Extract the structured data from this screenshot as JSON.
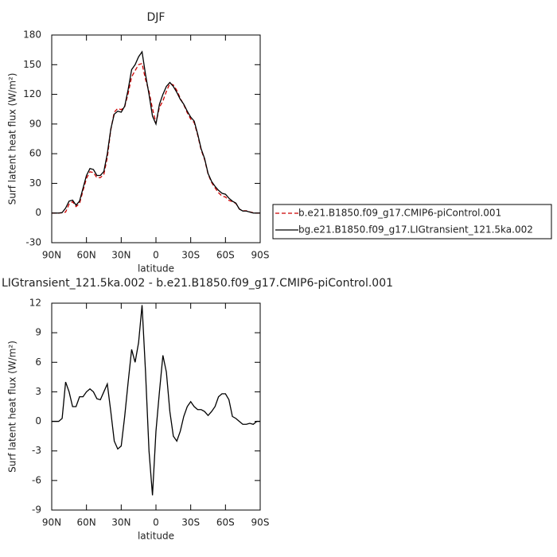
{
  "chart_data": [
    {
      "type": "line",
      "title": "DJF",
      "xlabel": "latitude",
      "ylabel": "Surf latent heat flux (W/m²)",
      "x": [
        90,
        87,
        84,
        81,
        78,
        75,
        72,
        69,
        66,
        63,
        60,
        57,
        54,
        51,
        48,
        45,
        42,
        39,
        36,
        33,
        30,
        27,
        24,
        21,
        18,
        15,
        12,
        9,
        6,
        3,
        0,
        -3,
        -6,
        -9,
        -12,
        -15,
        -18,
        -21,
        -24,
        -27,
        -30,
        -33,
        -36,
        -39,
        -42,
        -45,
        -48,
        -51,
        -54,
        -57,
        -60,
        -63,
        -66,
        -69,
        -72,
        -75,
        -78,
        -81,
        -84,
        -87,
        -90
      ],
      "xlim": [
        90,
        -90
      ],
      "xticks": [
        {
          "value": 90,
          "label": "90N"
        },
        {
          "value": 60,
          "label": "60N"
        },
        {
          "value": 30,
          "label": "30N"
        },
        0,
        {
          "value": -30,
          "label": "30S"
        },
        {
          "value": -60,
          "label": "60S"
        },
        {
          "value": -90,
          "label": "90S"
        }
      ],
      "ylim": [
        -30,
        180
      ],
      "yticks": [
        -30,
        0,
        30,
        60,
        90,
        120,
        150,
        180
      ],
      "legend": "right",
      "series": [
        {
          "name": "b.e21.B1850.f09_g17.CMIP6-piControl.001",
          "color": "#cc0000",
          "line_style": "dashed",
          "values": [
            0,
            0,
            0,
            0.2,
            1,
            9,
            11.5,
            6.5,
            9.5,
            22.5,
            35,
            41.7,
            41,
            35.7,
            35.8,
            39,
            56.2,
            84,
            102,
            105.8,
            104.5,
            107.5,
            121,
            137.7,
            144,
            150,
            151.2,
            135,
            123,
            105.5,
            91,
            107,
            113.3,
            123,
            131,
            129.5,
            124,
            116,
            109.5,
            101.5,
            95,
            91.5,
            78.8,
            63.8,
            54,
            39.4,
            31,
            25.5,
            20.5,
            17.2,
            16.2,
            12.8,
            11.5,
            9.7,
            4,
            2.3,
            2.3,
            1.2,
            0.3,
            0,
            0
          ]
        },
        {
          "name": "bg.e21.B1850.f09_g17.LIGtransient_121.5ka.002",
          "color": "#000000",
          "line_style": "solid",
          "values": [
            0,
            0,
            0,
            0.5,
            5,
            12,
            13,
            8,
            12,
            25,
            38,
            45,
            44,
            38,
            38,
            42,
            60,
            85,
            100,
            103,
            102,
            108,
            125,
            145,
            150,
            158,
            163,
            140,
            120,
            98,
            90,
            110,
            120,
            128,
            132,
            128,
            122,
            115,
            110,
            103,
            97,
            93,
            80,
            65,
            55,
            40,
            32,
            27,
            23,
            20,
            19,
            15,
            12,
            10,
            4,
            2,
            2,
            1,
            0,
            0,
            0
          ]
        }
      ]
    },
    {
      "type": "line",
      "title": "LIGtransient_121.5ka.002 - b.e21.B1850.f09_g17.CMIP6-piControl.001",
      "xlabel": "latitude",
      "ylabel": "Surf latent heat flux (W/m²)",
      "x": [
        90,
        87,
        84,
        81,
        78,
        75,
        72,
        69,
        66,
        63,
        60,
        57,
        54,
        51,
        48,
        45,
        42,
        39,
        36,
        33,
        30,
        27,
        24,
        21,
        18,
        15,
        12,
        9,
        6,
        3,
        0,
        -3,
        -6,
        -9,
        -12,
        -15,
        -18,
        -21,
        -24,
        -27,
        -30,
        -33,
        -36,
        -39,
        -42,
        -45,
        -48,
        -51,
        -54,
        -57,
        -60,
        -63,
        -66,
        -69,
        -72,
        -75,
        -78,
        -81,
        -84,
        -87,
        -90
      ],
      "xlim": [
        90,
        -90
      ],
      "xticks": [
        {
          "value": 90,
          "label": "90N"
        },
        {
          "value": 60,
          "label": "60N"
        },
        {
          "value": 30,
          "label": "30N"
        },
        0,
        {
          "value": -30,
          "label": "30S"
        },
        {
          "value": -60,
          "label": "60S"
        },
        {
          "value": -90,
          "label": "90S"
        }
      ],
      "ylim": [
        -9,
        12
      ],
      "yticks": [
        -9,
        -6,
        -3,
        0,
        3,
        6,
        9,
        12
      ],
      "series": [
        {
          "color": "#000000",
          "line_style": "solid",
          "values": [
            0,
            0,
            0,
            0.3,
            4,
            3,
            1.5,
            1.5,
            2.5,
            2.5,
            3,
            3.3,
            3,
            2.3,
            2.2,
            3,
            3.8,
            1,
            -2,
            -2.8,
            -2.5,
            0.5,
            4,
            7.3,
            6,
            8,
            11.8,
            5,
            -3,
            -7.5,
            -1,
            3,
            6.7,
            5,
            1,
            -1.5,
            -2,
            -1,
            0.5,
            1.5,
            2,
            1.5,
            1.2,
            1.2,
            1,
            0.6,
            1,
            1.5,
            2.5,
            2.8,
            2.8,
            2.2,
            0.5,
            0.3,
            0,
            -0.3,
            -0.3,
            -0.2,
            -0.3,
            0,
            0
          ]
        }
      ]
    }
  ]
}
